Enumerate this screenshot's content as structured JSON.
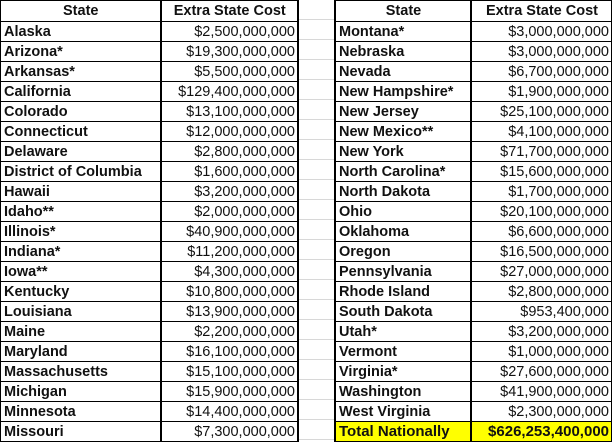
{
  "headers": {
    "state": "State",
    "cost": "Extra State Cost"
  },
  "highlight_color": "#ffff00",
  "left_table": [
    {
      "state": "Alaska",
      "cost": "$2,500,000,000"
    },
    {
      "state": "Arizona*",
      "cost": "$19,300,000,000"
    },
    {
      "state": "Arkansas*",
      "cost": "$5,500,000,000"
    },
    {
      "state": "California",
      "cost": "$129,400,000,000"
    },
    {
      "state": "Colorado",
      "cost": "$13,100,000,000"
    },
    {
      "state": "Connecticut",
      "cost": "$12,000,000,000"
    },
    {
      "state": "Delaware",
      "cost": "$2,800,000,000"
    },
    {
      "state": "District of Columbia",
      "cost": "$1,600,000,000"
    },
    {
      "state": "Hawaii",
      "cost": "$3,200,000,000"
    },
    {
      "state": "Idaho**",
      "cost": "$2,000,000,000"
    },
    {
      "state": "Illinois*",
      "cost": "$40,900,000,000"
    },
    {
      "state": "Indiana*",
      "cost": "$11,200,000,000"
    },
    {
      "state": "Iowa**",
      "cost": "$4,300,000,000"
    },
    {
      "state": "Kentucky",
      "cost": "$10,800,000,000"
    },
    {
      "state": "Louisiana",
      "cost": "$13,900,000,000"
    },
    {
      "state": "Maine",
      "cost": "$2,200,000,000"
    },
    {
      "state": "Maryland",
      "cost": "$16,100,000,000"
    },
    {
      "state": "Massachusetts",
      "cost": "$15,100,000,000"
    },
    {
      "state": "Michigan",
      "cost": "$15,900,000,000"
    },
    {
      "state": "Minnesota",
      "cost": "$14,400,000,000"
    },
    {
      "state": "Missouri",
      "cost": "$7,300,000,000"
    }
  ],
  "right_table": [
    {
      "state": "Montana*",
      "cost": "$3,000,000,000"
    },
    {
      "state": "Nebraska",
      "cost": "$3,000,000,000"
    },
    {
      "state": "Nevada",
      "cost": "$6,700,000,000"
    },
    {
      "state": "New Hampshire*",
      "cost": "$1,900,000,000"
    },
    {
      "state": "New Jersey",
      "cost": "$25,100,000,000"
    },
    {
      "state": "New Mexico**",
      "cost": "$4,100,000,000"
    },
    {
      "state": "New York",
      "cost": "$71,700,000,000"
    },
    {
      "state": "North Carolina*",
      "cost": "$15,600,000,000"
    },
    {
      "state": "North Dakota",
      "cost": "$1,700,000,000"
    },
    {
      "state": "Ohio",
      "cost": "$20,100,000,000"
    },
    {
      "state": "Oklahoma",
      "cost": "$6,600,000,000"
    },
    {
      "state": "Oregon",
      "cost": "$16,500,000,000"
    },
    {
      "state": "Pennsylvania",
      "cost": "$27,000,000,000"
    },
    {
      "state": "Rhode Island",
      "cost": "$2,800,000,000"
    },
    {
      "state": "South Dakota",
      "cost": "$953,400,000"
    },
    {
      "state": "Utah*",
      "cost": "$3,200,000,000"
    },
    {
      "state": "Vermont",
      "cost": "$1,000,000,000"
    },
    {
      "state": "Virginia*",
      "cost": "$27,600,000,000"
    },
    {
      "state": "Washington",
      "cost": "$41,900,000,000"
    },
    {
      "state": "West Virginia",
      "cost": "$2,300,000,000"
    }
  ],
  "total": {
    "label": "Total Nationally",
    "cost": "$626,253,400,000"
  }
}
